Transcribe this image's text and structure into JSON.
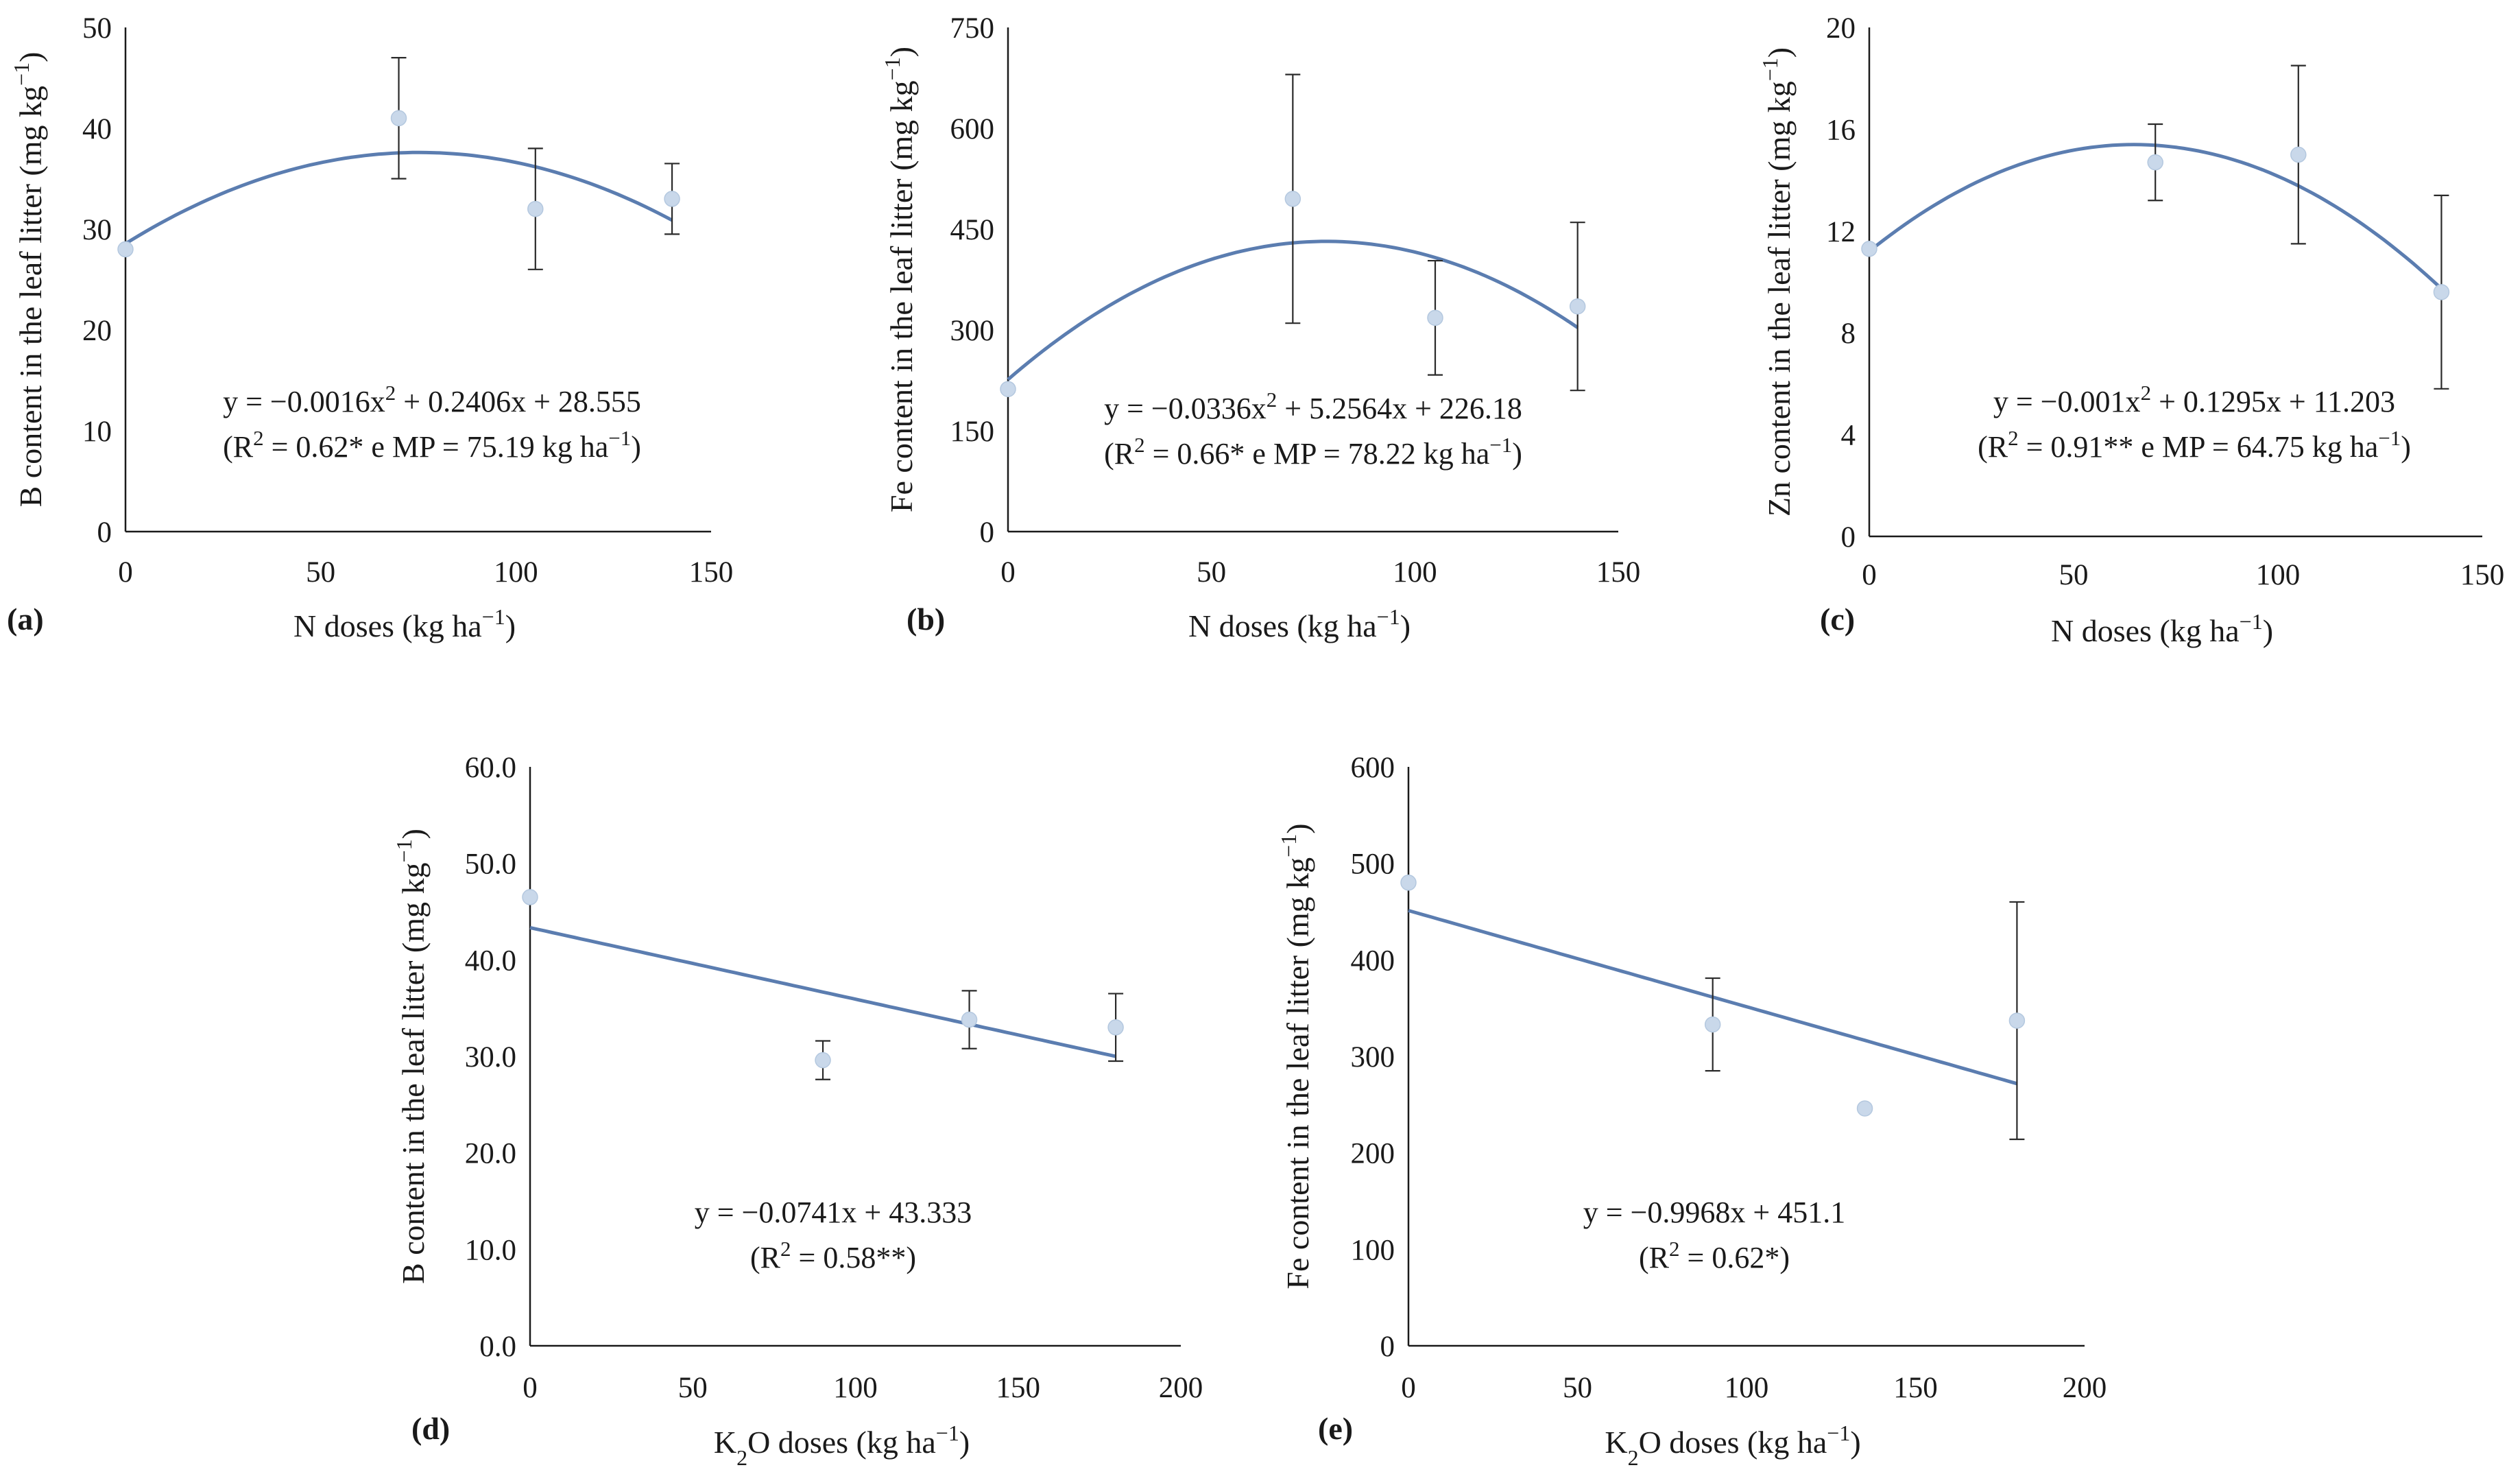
{
  "chart_data": [
    {
      "type": "scatter",
      "panel_label": "(a)",
      "xlabel": "N doses  (kg ha^{−1})",
      "ylabel": "B content in the leaf litter (mg kg^{−1})",
      "xlim": [
        0,
        150
      ],
      "ylim": [
        0,
        50
      ],
      "xticks": [
        "0",
        "50",
        "100",
        "150"
      ],
      "yticks": [
        "0",
        "10",
        "20",
        "30",
        "40",
        "50"
      ],
      "points": [
        {
          "x": 0,
          "y": 28.0
        },
        {
          "x": 70,
          "y": 41.0,
          "err": 6.0
        },
        {
          "x": 105,
          "y": 32.0,
          "err": 6.0
        },
        {
          "x": 140,
          "y": 33.0,
          "err": 3.5
        }
      ],
      "fit": {
        "kind": "quadratic",
        "a": -0.0016,
        "b": 0.2406,
        "c": 28.555,
        "x_range": [
          0,
          140
        ]
      },
      "equation": "y = −0.0016x^{2} + 0.2406x + 28.555",
      "stats": "(R^{2} = 0.62* e MP = 75.19 kg ha^{−1})"
    },
    {
      "type": "scatter",
      "panel_label": "(b)",
      "xlabel": "N doses  (kg ha^{−1})",
      "ylabel": "Fe content in the leaf litter (mg kg^{−1})",
      "xlim": [
        0,
        150
      ],
      "ylim": [
        0,
        750
      ],
      "xticks": [
        "0",
        "50",
        "100",
        "150"
      ],
      "yticks": [
        "0",
        "150",
        "300",
        "450",
        "600",
        "750"
      ],
      "points": [
        {
          "x": 0,
          "y": 212
        },
        {
          "x": 70,
          "y": 495,
          "err": 185
        },
        {
          "x": 105,
          "y": 318,
          "err": 85
        },
        {
          "x": 140,
          "y": 335,
          "err": 125
        }
      ],
      "fit": {
        "kind": "quadratic",
        "a": -0.0336,
        "b": 5.2564,
        "c": 226.18,
        "x_range": [
          0,
          140
        ]
      },
      "equation": "y = −0.0336x^{2} + 5.2564x + 226.18",
      "stats": "(R^{2} = 0.66* e MP = 78.22 kg ha^{−1})"
    },
    {
      "type": "scatter",
      "panel_label": "(c)",
      "xlabel": "N doses  (kg ha^{−1})",
      "ylabel": "Zn content in the leaf litter (mg kg^{−1})",
      "xlim": [
        0,
        150
      ],
      "ylim": [
        0,
        20
      ],
      "xticks": [
        "0",
        "50",
        "100",
        "150"
      ],
      "yticks": [
        "0",
        "4",
        "8",
        "12",
        "16",
        "20"
      ],
      "points": [
        {
          "x": 0,
          "y": 11.3
        },
        {
          "x": 70,
          "y": 14.7,
          "err": 1.5
        },
        {
          "x": 105,
          "y": 15.0,
          "err": 3.5
        },
        {
          "x": 140,
          "y": 9.6,
          "err": 3.8
        }
      ],
      "fit": {
        "kind": "quadratic",
        "a": -0.001,
        "b": 0.1295,
        "c": 11.203,
        "x_range": [
          0,
          140
        ]
      },
      "equation": "y = −0.001x^{2} + 0.1295x + 11.203",
      "stats": "(R^{2} = 0.91** e MP = 64.75 kg ha^{−1})"
    },
    {
      "type": "scatter",
      "panel_label": "(d)",
      "xlabel": "K_{2}O doses  (kg ha^{−1})",
      "ylabel": "B content in the leaf litter (mg kg^{−1})",
      "xlim": [
        0,
        200
      ],
      "ylim": [
        0,
        60
      ],
      "xticks": [
        "0",
        "50",
        "100",
        "150",
        "200"
      ],
      "yticks": [
        "0.0",
        "10.0",
        "20.0",
        "30.0",
        "40.0",
        "50.0",
        "60.0"
      ],
      "points": [
        {
          "x": 0,
          "y": 46.5
        },
        {
          "x": 90,
          "y": 29.6,
          "err": 2.0
        },
        {
          "x": 135,
          "y": 33.8,
          "err": 3.0
        },
        {
          "x": 180,
          "y": 33.0,
          "err": 3.5
        }
      ],
      "fit": {
        "kind": "linear",
        "a": 0,
        "b": -0.0741,
        "c": 43.333,
        "x_range": [
          0,
          180
        ]
      },
      "equation": "y = −0.0741x + 43.333",
      "stats": "(R^{2} = 0.58**)"
    },
    {
      "type": "scatter",
      "panel_label": "(e)",
      "xlabel": "K_{2}O doses  (kg ha^{−1})",
      "ylabel": "Fe content in the leaf litter (mg kg^{−1})",
      "xlim": [
        0,
        200
      ],
      "ylim": [
        0,
        600
      ],
      "xticks": [
        "0",
        "50",
        "100",
        "150",
        "200"
      ],
      "yticks": [
        "0",
        "100",
        "200",
        "300",
        "400",
        "500",
        "600"
      ],
      "points": [
        {
          "x": 0,
          "y": 480
        },
        {
          "x": 90,
          "y": 333,
          "err": 48
        },
        {
          "x": 135,
          "y": 246
        },
        {
          "x": 180,
          "y": 337,
          "err": 123
        }
      ],
      "fit": {
        "kind": "linear",
        "a": 0,
        "b": -0.9968,
        "c": 451.1,
        "x_range": [
          0,
          180
        ]
      },
      "equation": "y = −0.9968x + 451.1",
      "stats": "(R^{2} = 0.62*)"
    }
  ],
  "colors": {
    "fit_line": "#5b7db0",
    "points": "#c9d8ea",
    "axes": "#1a1a1a",
    "error_bars": "#2a2a2a"
  }
}
